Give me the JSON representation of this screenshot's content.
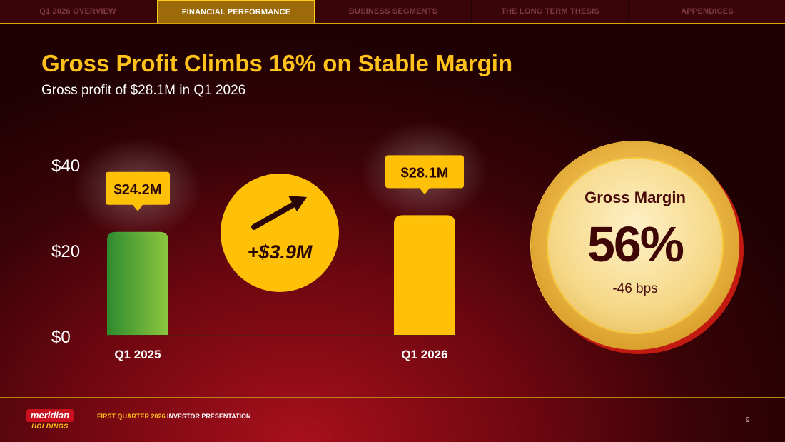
{
  "nav": {
    "tabs": [
      {
        "label": "Q1 2026 OVERVIEW",
        "active": false
      },
      {
        "label": "FINANCIAL PERFORMANCE",
        "active": true
      },
      {
        "label": "BUSINESS SEGMENTS",
        "active": false
      },
      {
        "label": "THE LONG TERM THESIS",
        "active": false
      },
      {
        "label": "APPENDICES",
        "active": false
      }
    ]
  },
  "title": "Gross Profit Climbs 16% on Stable Margin",
  "subtitle": "Gross profit of $28.1M in Q1 2026",
  "chart_data": {
    "type": "bar",
    "categories": [
      "Q1 2025",
      "Q1 2026"
    ],
    "values": [
      24.2,
      28.1
    ],
    "data_labels": [
      "$24.2M",
      "$28.1M"
    ],
    "y_ticks": [
      "$0",
      "$20",
      "$40"
    ],
    "y_tick_values": [
      0,
      20,
      40
    ],
    "ylim": [
      0,
      40
    ],
    "bar_colors": [
      "#4caf3c",
      "#ffc107"
    ],
    "change_label": "+$3.9M",
    "grid": false
  },
  "gross_margin": {
    "label": "Gross Margin",
    "value": "56%",
    "delta": "-46 bps"
  },
  "footer": {
    "logo_top": "meridian",
    "logo_bottom": "HOLDINGS",
    "text_highlight": "FIRST QUARTER 2026",
    "text_rest": "INVESTOR PRESENTATION",
    "page_number": "9"
  },
  "colors": {
    "accent": "#ffc21a",
    "background_dark": "#3a0307",
    "background_red": "#a8101c"
  }
}
